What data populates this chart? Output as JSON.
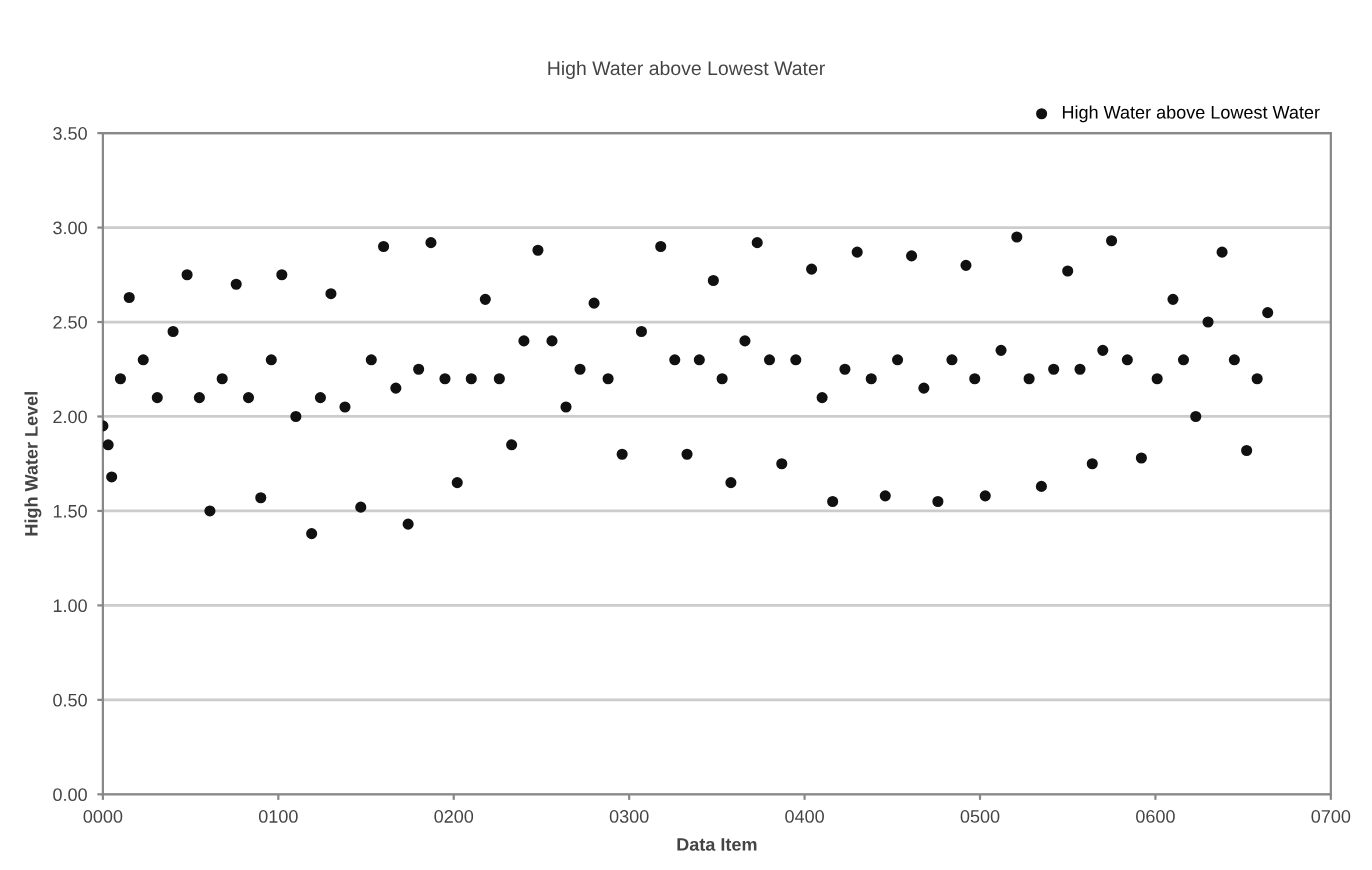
{
  "chart_data": {
    "type": "scatter",
    "title": "High Water above Lowest Water",
    "xlabel": "Data Item",
    "ylabel": "High Water Level",
    "x": [
      0,
      3,
      5,
      10,
      15,
      23,
      31,
      40,
      48,
      55,
      61,
      68,
      76,
      83,
      90,
      96,
      102,
      110,
      119,
      124,
      130,
      138,
      147,
      153,
      160,
      167,
      174,
      180,
      187,
      195,
      202,
      210,
      218,
      226,
      233,
      240,
      248,
      256,
      264,
      272,
      280,
      288,
      296,
      307,
      318,
      326,
      333,
      340,
      348,
      353,
      358,
      366,
      373,
      380,
      387,
      395,
      404,
      410,
      416,
      423,
      430,
      438,
      446,
      453,
      461,
      468,
      476,
      484,
      492,
      497,
      503,
      512,
      521,
      528,
      535,
      542,
      550,
      557,
      564,
      570,
      575,
      584,
      592,
      601,
      610,
      616,
      623,
      630,
      638,
      645,
      652,
      658,
      664
    ],
    "series": [
      {
        "name": "High Water above Lowest Water",
        "color": "#111111",
        "values": [
          1.95,
          1.85,
          1.68,
          2.2,
          2.63,
          2.3,
          2.1,
          2.45,
          2.75,
          2.1,
          1.5,
          2.2,
          2.7,
          2.1,
          1.57,
          2.3,
          2.75,
          2.0,
          1.38,
          2.1,
          2.65,
          2.05,
          1.52,
          2.3,
          2.9,
          2.15,
          1.43,
          2.25,
          2.92,
          2.2,
          1.65,
          2.2,
          2.62,
          2.2,
          1.85,
          2.4,
          2.88,
          2.4,
          2.05,
          2.25,
          2.6,
          2.2,
          1.8,
          2.45,
          2.9,
          2.3,
          1.8,
          2.3,
          2.72,
          2.2,
          1.65,
          2.4,
          2.92,
          2.3,
          1.75,
          2.3,
          2.78,
          2.1,
          1.55,
          2.25,
          2.87,
          2.2,
          1.58,
          2.3,
          2.85,
          2.15,
          1.55,
          2.3,
          2.8,
          2.2,
          1.58,
          2.35,
          2.95,
          2.2,
          1.63,
          2.25,
          2.77,
          2.25,
          1.75,
          2.35,
          2.93,
          2.3,
          1.78,
          2.2,
          2.62,
          2.3,
          2.0,
          2.5,
          2.87,
          2.3,
          1.82,
          2.2,
          2.55
        ]
      }
    ],
    "xlim": [
      0,
      700
    ],
    "ylim": [
      0,
      3.5
    ],
    "xticks": [
      {
        "value": 0,
        "label": "0000"
      },
      {
        "value": 100,
        "label": "0100"
      },
      {
        "value": 200,
        "label": "0200"
      },
      {
        "value": 300,
        "label": "0300"
      },
      {
        "value": 400,
        "label": "0400"
      },
      {
        "value": 500,
        "label": "0500"
      },
      {
        "value": 600,
        "label": "0600"
      },
      {
        "value": 700,
        "label": "0700"
      }
    ],
    "yticks": [
      {
        "value": 0,
        "label": "0.00"
      },
      {
        "value": 0.5,
        "label": "0.50"
      },
      {
        "value": 1.0,
        "label": "1.00"
      },
      {
        "value": 1.5,
        "label": "1.50"
      },
      {
        "value": 2.0,
        "label": "2.00"
      },
      {
        "value": 2.5,
        "label": "2.50"
      },
      {
        "value": 3.0,
        "label": "3.00"
      },
      {
        "value": 3.5,
        "label": "3.50"
      }
    ],
    "grid": "y",
    "legend": "top right",
    "marker": "circle"
  }
}
